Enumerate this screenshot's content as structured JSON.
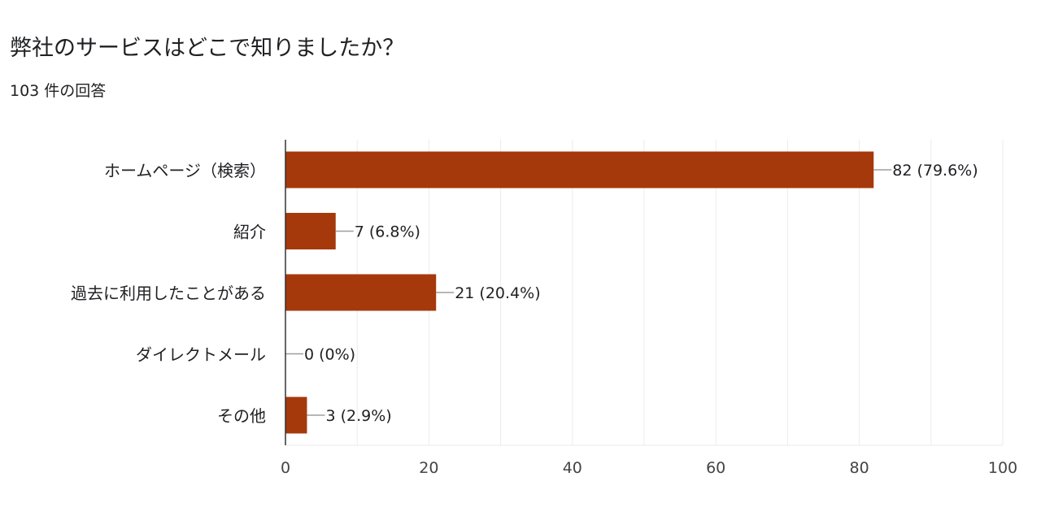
{
  "title": "弊社のサービスはどこで知りましたか？",
  "response_count": "103 件の回答",
  "colors": {
    "bar": "#A5390C",
    "grid": "#ebebeb",
    "axis": "#333333",
    "connector": "#9e9e9e",
    "text": "#202124",
    "tick_text": "#444444"
  },
  "chart_data": {
    "type": "bar",
    "orientation": "horizontal",
    "categories": [
      "ホームページ（検索）",
      "紹介",
      "過去に利用したことがある",
      "ダイレクトメール",
      "その他"
    ],
    "values": [
      82,
      7,
      21,
      0,
      3
    ],
    "data_labels": [
      "82 (79.6%)",
      "7 (6.8%)",
      "21 (20.4%)",
      "0 (0%)",
      "3 (2.9%)"
    ],
    "xlim": [
      0,
      100
    ],
    "xticks": [
      0,
      20,
      40,
      60,
      80,
      100
    ],
    "grid": true
  }
}
